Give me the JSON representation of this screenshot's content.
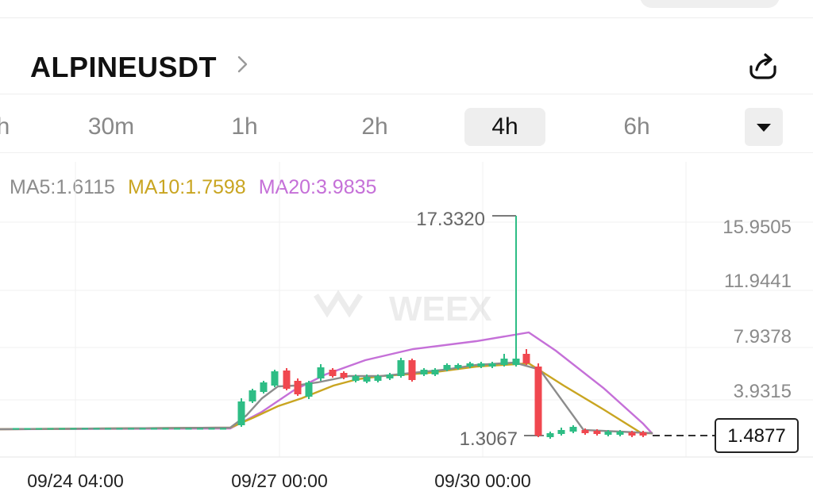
{
  "header": {
    "pair": "ALPINEUSDT"
  },
  "intervals": {
    "items": [
      {
        "label": "h"
      },
      {
        "label": "30m"
      },
      {
        "label": "1h"
      },
      {
        "label": "2h"
      },
      {
        "label": "4h",
        "active": true
      },
      {
        "label": "6h"
      }
    ]
  },
  "indicators": {
    "ma5": "MA5:1.6115",
    "ma10": "MA10:1.7598",
    "ma20": "MA20:3.9835"
  },
  "watermark": "WEEX",
  "chart_data": {
    "type": "candlestick",
    "price_axis_labels": [
      "15.9505",
      "11.9441",
      "7.9378",
      "3.9315"
    ],
    "high_label": "17.3320",
    "low_label": "1.3067",
    "last_price": "1.4877",
    "time_labels": [
      "09/24 04:00",
      "09/27 00:00",
      "09/30 00:00"
    ],
    "colors": {
      "up": "#2ebd85",
      "down": "#f0474f",
      "ma5": "#8c8c8c",
      "ma10": "#c9a521",
      "ma20": "#c570d8"
    }
  }
}
